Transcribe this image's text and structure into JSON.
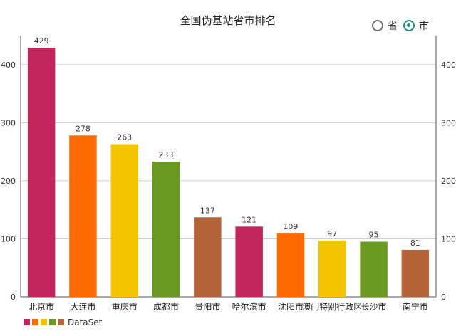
{
  "title": "全国伪基站省市排名",
  "toggle": {
    "options": [
      {
        "label": "省",
        "checked": false
      },
      {
        "label": "市",
        "checked": true
      }
    ],
    "accent": "#1b8f80"
  },
  "chart_data": {
    "type": "bar",
    "categories": [
      "北京市",
      "大连市",
      "重庆市",
      "成都市",
      "贵阳市",
      "哈尔滨市",
      "沈阳市",
      "澳门特别行政区",
      "长沙市",
      "南宁市"
    ],
    "values": [
      429,
      278,
      263,
      233,
      137,
      121,
      109,
      97,
      95,
      81
    ],
    "colors": [
      "#c2255c",
      "#ff6a00",
      "#f5c400",
      "#6a9a20",
      "#b5643a",
      "#c2255c",
      "#ff6a00",
      "#f5c400",
      "#6a9a20",
      "#b5643a"
    ],
    "ylim": [
      0,
      450
    ],
    "yticks": [
      0,
      100,
      200,
      300,
      400
    ],
    "yaxis_right": true,
    "grid": true,
    "legend": {
      "position": "bottom-left",
      "label": "DataSet",
      "colors": [
        "#c2255c",
        "#ff6a00",
        "#f5c400",
        "#6a9a20",
        "#b5643a"
      ]
    }
  }
}
